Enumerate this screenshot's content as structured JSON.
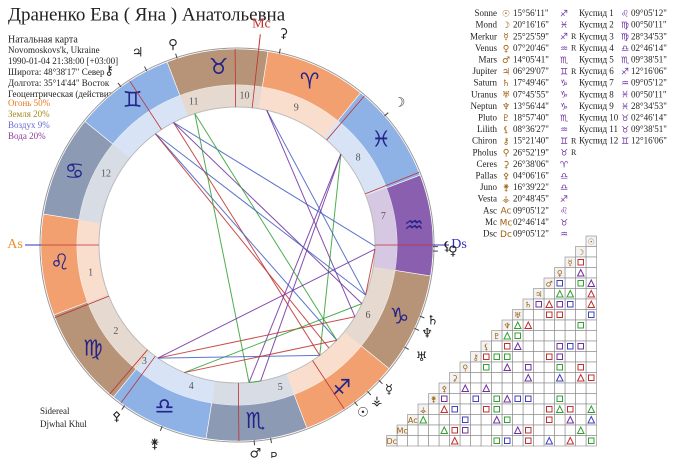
{
  "header": {
    "title": "Драненко Ева ( Яна ) Анатольевна",
    "subtitle": "Натальная карта",
    "location": "Novomoskovs'k, Ukraine",
    "datetime": "1990-01-04 21:38:00 [+03:00]",
    "latitude": "Широта: 48°38'17\" Север",
    "longitude": "Долгота: 35°14'44\" Восток",
    "mode": "Геоцентрическая (действительна"
  },
  "elements": [
    {
      "label": "Огонь 50%",
      "color": "#e8781c"
    },
    {
      "label": "Земля 20%",
      "color": "#a68a1c"
    },
    {
      "label": "Воздух 9%",
      "color": "#6a6ad0"
    },
    {
      "label": "Вода 20%",
      "color": "#8a3aa0"
    }
  ],
  "signs": [
    {
      "glyph": "♈",
      "color": "#f2a070"
    },
    {
      "glyph": "♉",
      "color": "#b79478"
    },
    {
      "glyph": "♊",
      "color": "#8fb2e6"
    },
    {
      "glyph": "♋",
      "color": "#8d9ab4"
    },
    {
      "glyph": "♌",
      "color": "#f2a070"
    },
    {
      "glyph": "♍",
      "color": "#b79478"
    },
    {
      "glyph": "♎",
      "color": "#8fb2e6"
    },
    {
      "glyph": "♏",
      "color": "#8d9ab4"
    },
    {
      "glyph": "♐",
      "color": "#f2a070"
    },
    {
      "glyph": "♑",
      "color": "#b79478"
    },
    {
      "glyph": "♒",
      "color": "#8a5fb0"
    },
    {
      "glyph": "♓",
      "color": "#8fb2e6"
    }
  ],
  "houses": [
    "1",
    "2",
    "3",
    "4",
    "5",
    "6",
    "7",
    "8",
    "9",
    "10",
    "11",
    "12"
  ],
  "angles": {
    "as": "As",
    "mc": "Mc",
    "ds": "Ds"
  },
  "planets": [
    {
      "name": "Sonne",
      "glyph": "☉",
      "position": "15°56'11\"",
      "sign": "♐"
    },
    {
      "name": "Mond",
      "glyph": "☽",
      "position": "20°16'16\"",
      "sign": "♓"
    },
    {
      "name": "Merkur",
      "glyph": "☿",
      "position": "25°25'59\"",
      "sign": "♐",
      "retro": "R"
    },
    {
      "name": "Venus",
      "glyph": "♀",
      "position": "07°20'46\"",
      "sign": "♒",
      "retro": "R"
    },
    {
      "name": "Mars",
      "glyph": "♂",
      "position": "14°05'41\"",
      "sign": "♏"
    },
    {
      "name": "Jupiter",
      "glyph": "♃",
      "position": "06°29'07\"",
      "sign": "♊",
      "retro": "R"
    },
    {
      "name": "Saturn",
      "glyph": "♄",
      "position": "17°49'46\"",
      "sign": "♑"
    },
    {
      "name": "Uranus",
      "glyph": "♅",
      "position": "07°45'55\"",
      "sign": "♑"
    },
    {
      "name": "Neptun",
      "glyph": "♆",
      "position": "13°56'44\"",
      "sign": "♑"
    },
    {
      "name": "Pluto",
      "glyph": "♇",
      "position": "18°57'40\"",
      "sign": "♏"
    },
    {
      "name": "Lilith",
      "glyph": "⚸",
      "position": "08°36'27\"",
      "sign": "♒"
    },
    {
      "name": "Chiron",
      "glyph": "⚷",
      "position": "15°21'40\"",
      "sign": "♊",
      "retro": "R"
    },
    {
      "name": "Pholus",
      "glyph": "⚲",
      "position": "26°52'19\"",
      "sign": "♉",
      "retro": "R"
    },
    {
      "name": "Ceres",
      "glyph": "⚳",
      "position": "26°38'06\"",
      "sign": "♈"
    },
    {
      "name": "Pallas",
      "glyph": "⚴",
      "position": "04°06'16\"",
      "sign": "♎"
    },
    {
      "name": "Juno",
      "glyph": "⚵",
      "position": "16°39'22\"",
      "sign": "♎"
    },
    {
      "name": "Vesta",
      "glyph": "⚶",
      "position": "20°48'45\"",
      "sign": "♐"
    },
    {
      "name": "Asc",
      "glyph": "Ac",
      "position": "09°05'12\"",
      "sign": "♌"
    },
    {
      "name": "Mc",
      "glyph": "Mc",
      "position": "02°46'14\"",
      "sign": "♉"
    },
    {
      "name": "Dsc",
      "glyph": "Dc",
      "position": "09°05'12\"",
      "sign": "♒"
    }
  ],
  "cusps": [
    {
      "label": "Куспид 1",
      "sign": "♌",
      "position": "09°05'12\""
    },
    {
      "label": "Куспид 2",
      "sign": "♍",
      "position": "00°50'11\""
    },
    {
      "label": "Куспид 3",
      "sign": "♍",
      "position": "28°34'53\""
    },
    {
      "label": "Куспид 4",
      "sign": "♎",
      "position": "02°46'14\""
    },
    {
      "label": "Куспид 5",
      "sign": "♏",
      "position": "09°38'51\""
    },
    {
      "label": "Куспид 6",
      "sign": "♐",
      "position": "12°16'06\""
    },
    {
      "label": "Куспид 7",
      "sign": "♒",
      "position": "09°05'12\""
    },
    {
      "label": "Куспид 8",
      "sign": "♓",
      "position": "00°50'11\""
    },
    {
      "label": "Куспид 9",
      "sign": "♓",
      "position": "28°34'53\""
    },
    {
      "label": "Куспид 10",
      "sign": "♉",
      "position": "02°46'14\""
    },
    {
      "label": "Куспид 11",
      "sign": "♉",
      "position": "09°38'51\""
    },
    {
      "label": "Куспид 12",
      "sign": "♊",
      "position": "12°16'06\""
    }
  ],
  "footer": {
    "system": "Sidereal",
    "author": "Djwhal Khul"
  }
}
